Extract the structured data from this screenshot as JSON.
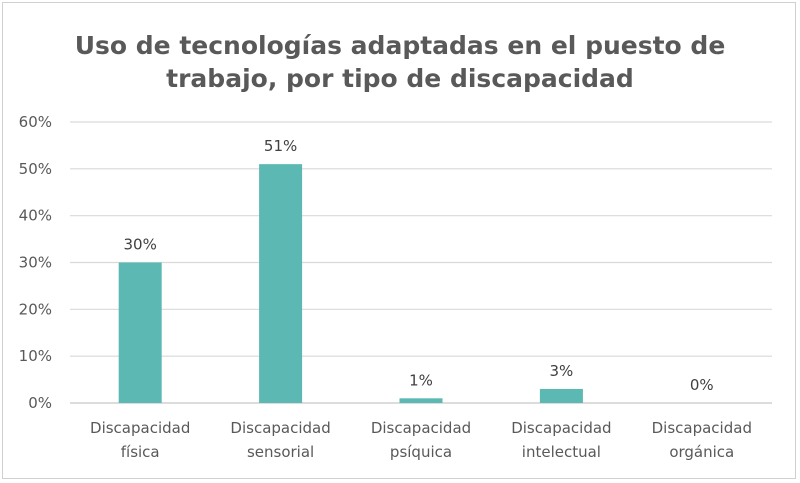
{
  "chart_data": {
    "type": "bar",
    "title": "Uso de tecnologías adaptadas en el puesto de trabajo, por tipo de discapacidad",
    "title_lines": [
      "Uso de tecnologías adaptadas en el puesto de",
      "trabajo, por tipo de discapacidad"
    ],
    "categories": [
      "Discapacidad física",
      "Discapacidad sensorial",
      "Discapacidad psíquica",
      "Discapacidad intelectual",
      "Discapacidad orgánica"
    ],
    "category_lines": [
      [
        "Discapacidad",
        "física"
      ],
      [
        "Discapacidad",
        "sensorial"
      ],
      [
        "Discapacidad",
        "psíquica"
      ],
      [
        "Discapacidad",
        "intelectual"
      ],
      [
        "Discapacidad",
        "orgánica"
      ]
    ],
    "values": [
      30,
      51,
      1,
      3,
      0
    ],
    "data_labels": [
      "30%",
      "51%",
      "1%",
      "3%",
      "0%"
    ],
    "xlabel": "",
    "ylabel": "",
    "ylim": [
      0,
      60
    ],
    "yticks": [
      "0%",
      "10%",
      "20%",
      "30%",
      "40%",
      "50%",
      "60%"
    ],
    "grid": true,
    "legend": "none",
    "bar_color": "#5bb8b2"
  }
}
